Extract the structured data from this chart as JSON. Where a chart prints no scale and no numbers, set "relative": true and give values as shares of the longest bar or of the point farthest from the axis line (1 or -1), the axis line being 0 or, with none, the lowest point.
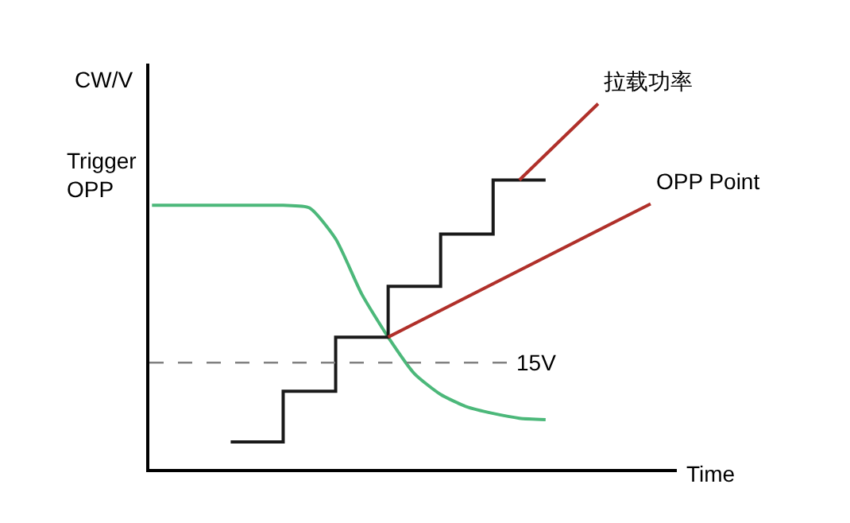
{
  "chart_data": {
    "type": "line",
    "relative": true,
    "xlabel": "Time",
    "ylabel": "CW/V",
    "categories": [
      null,
      null,
      null,
      null,
      null,
      null,
      null,
      null,
      null,
      null,
      null,
      null,
      null,
      null,
      null,
      null,
      null,
      null,
      null,
      null
    ],
    "series": [
      {
        "color": "#4cb87a",
        "values": [
          0.722,
          0.722,
          0.722,
          0.722,
          0.722,
          0.722,
          0.715,
          0.63,
          0.478,
          0.361,
          0.261,
          0.204,
          0.17,
          0.152,
          0.139,
          0.135,
          null,
          null,
          null,
          null
        ]
      },
      {
        "type": "step",
        "color": "#1a1a1a",
        "values": [
          null,
          null,
          null,
          0.074,
          null,
          0.213,
          null,
          0.361,
          null,
          0.5,
          null,
          0.643,
          null,
          0.791,
          null,
          0.791,
          null,
          null,
          null,
          null
        ]
      },
      {
        "name": "拉载功率",
        "color": "#b0302a",
        "values": [
          null,
          null,
          null,
          null,
          null,
          null,
          null,
          null,
          null,
          null,
          null,
          null,
          null,
          null,
          0.791,
          null,
          null,
          1.0,
          null,
          null
        ]
      },
      {
        "name": "OPP Point",
        "color": "#b0302a",
        "values": [
          null,
          null,
          null,
          null,
          null,
          null,
          null,
          null,
          null,
          0.361,
          null,
          null,
          null,
          null,
          null,
          null,
          null,
          null,
          null,
          0.726
        ]
      }
    ],
    "ref_lines": [
      {
        "axis": "y",
        "value": 0.291,
        "label": "15V",
        "color": "#808080",
        "line_style": "dashed"
      }
    ],
    "annotations": [
      "Trigger\nOPP"
    ],
    "legend": false,
    "marker": "none",
    "line_style": "solid"
  }
}
